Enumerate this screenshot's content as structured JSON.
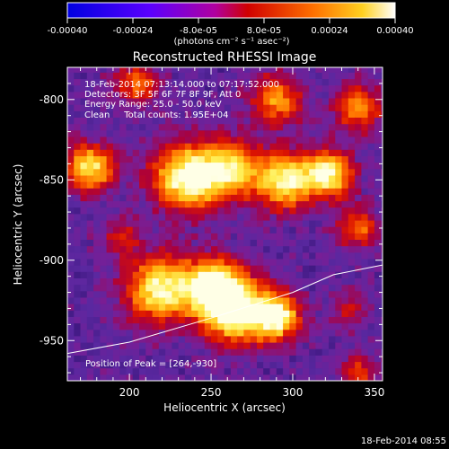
{
  "colorbar": {
    "ticks": [
      "-0.00040",
      "-0.00024",
      "-8.0e-05",
      "8.0e-05",
      "0.00024",
      "0.00040"
    ],
    "tick_values": [
      -0.0004,
      -0.00024,
      -8e-05,
      8e-05,
      0.00024,
      0.0004
    ],
    "range": [
      -0.0004,
      0.0004
    ],
    "units_label": "(photons cm⁻² s⁻¹ asec⁻²)"
  },
  "chart_data": {
    "type": "heatmap",
    "title": "Reconstructed RHESSI Image",
    "xlabel": "Heliocentric X (arcsec)",
    "ylabel": "Heliocentric Y (arcsec)",
    "xlim": [
      162,
      355
    ],
    "ylim": [
      -975,
      -780
    ],
    "xticks": [
      200,
      250,
      300,
      350
    ],
    "yticks": [
      -800,
      -850,
      -900,
      -950
    ],
    "annotations": [
      "18-Feb-2014 07:13:14.000 to 07:17:52.000",
      "Detectors: 3F 5F 6F 7F 8F 9F, Att 0",
      "Energy Range: 25.0 - 50.0 keV",
      "Clean     Total counts: 1.95E+04"
    ],
    "peak_label": "Position of Peak = [264,-930]",
    "peak": [
      264,
      -930
    ],
    "limb_curve": [
      [
        162,
        -958
      ],
      [
        200,
        -951
      ],
      [
        250,
        -936
      ],
      [
        300,
        -920
      ],
      [
        325,
        -909
      ],
      [
        355,
        -903
      ]
    ],
    "sources": [
      {
        "x": 235,
        "y": -848,
        "sigma": 14,
        "amp": 0.95
      },
      {
        "x": 262,
        "y": -843,
        "sigma": 12,
        "amp": 0.75
      },
      {
        "x": 295,
        "y": -850,
        "sigma": 12,
        "amp": 0.85
      },
      {
        "x": 322,
        "y": -846,
        "sigma": 10,
        "amp": 0.85
      },
      {
        "x": 218,
        "y": -918,
        "sigma": 14,
        "amp": 0.85
      },
      {
        "x": 250,
        "y": -915,
        "sigma": 12,
        "amp": 0.75
      },
      {
        "x": 264,
        "y": -930,
        "sigma": 14,
        "amp": 1.0
      },
      {
        "x": 290,
        "y": -935,
        "sigma": 10,
        "amp": 0.85
      },
      {
        "x": 176,
        "y": -842,
        "sigma": 10,
        "amp": 0.8
      },
      {
        "x": 290,
        "y": -800,
        "sigma": 11,
        "amp": 0.55
      },
      {
        "x": 340,
        "y": -805,
        "sigma": 10,
        "amp": 0.55
      },
      {
        "x": 205,
        "y": -790,
        "sigma": 10,
        "amp": 0.45
      },
      {
        "x": 340,
        "y": -880,
        "sigma": 9,
        "amp": 0.45
      },
      {
        "x": 195,
        "y": -885,
        "sigma": 9,
        "amp": 0.3
      },
      {
        "x": 340,
        "y": -970,
        "sigma": 8,
        "amp": 0.4
      },
      {
        "x": 335,
        "y": -930,
        "sigma": 8,
        "amp": 0.3
      }
    ]
  },
  "timestamp": "18-Feb-2014 08:55"
}
